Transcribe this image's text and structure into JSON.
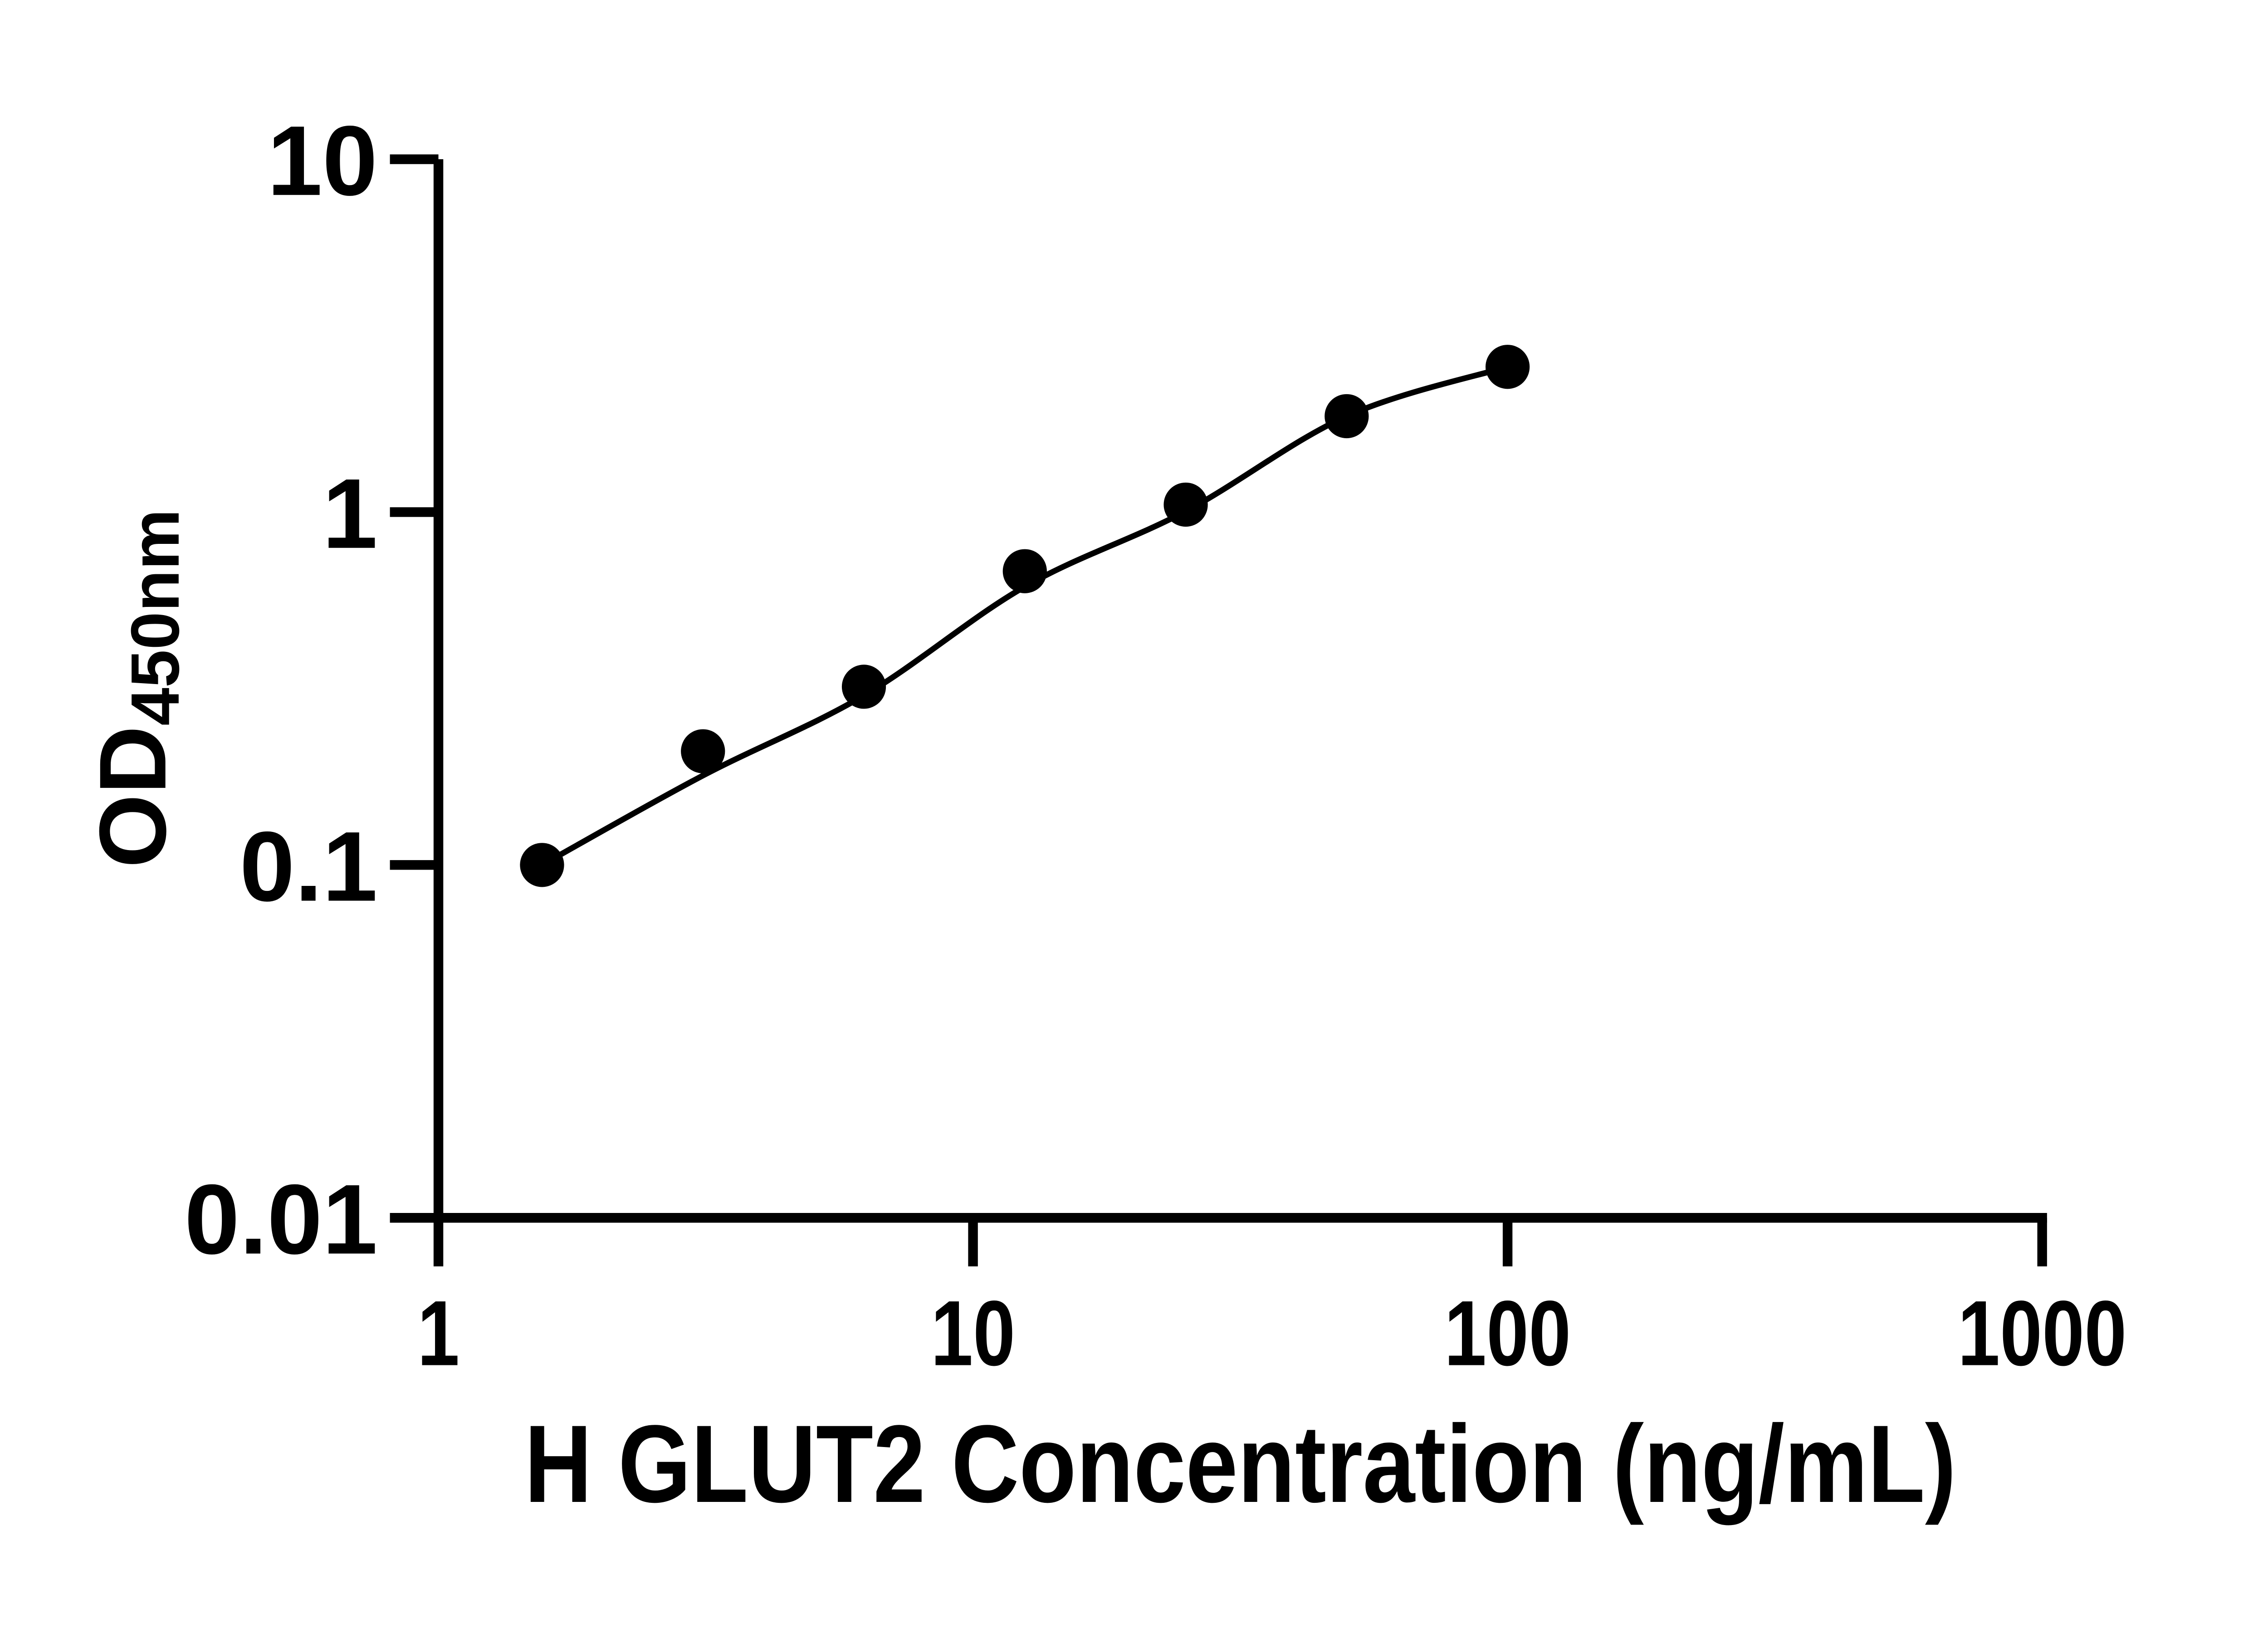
{
  "chart_data": {
    "type": "scatter",
    "subtype": "standard-curve-with-fit-line",
    "title": "",
    "xlabel": "H GLUT2 Concentration (ng/mL)",
    "ylabel": "OD450nm",
    "ylabel_main": "OD",
    "ylabel_sub": "450nm",
    "x_scale": "log",
    "y_scale": "log",
    "xlim": [
      1,
      1000
    ],
    "ylim": [
      0.01,
      10
    ],
    "x_ticks": [
      1,
      10,
      100,
      1000
    ],
    "x_tick_labels": [
      "1",
      "10",
      "100",
      "1000"
    ],
    "y_ticks": [
      10,
      1,
      0.1,
      0.01
    ],
    "y_tick_labels": [
      "10",
      "1",
      "0.1",
      "0.01"
    ],
    "x": [
      1.5625,
      3.125,
      6.25,
      12.5,
      25,
      50,
      100
    ],
    "y": [
      0.1,
      0.21,
      0.32,
      0.68,
      1.05,
      1.87,
      2.58
    ],
    "marker": "filled-circle",
    "marker_color": "#000000",
    "line_color": "#000000",
    "axis_color": "#000000",
    "background": "#ffffff",
    "grid": false,
    "legend": false
  }
}
